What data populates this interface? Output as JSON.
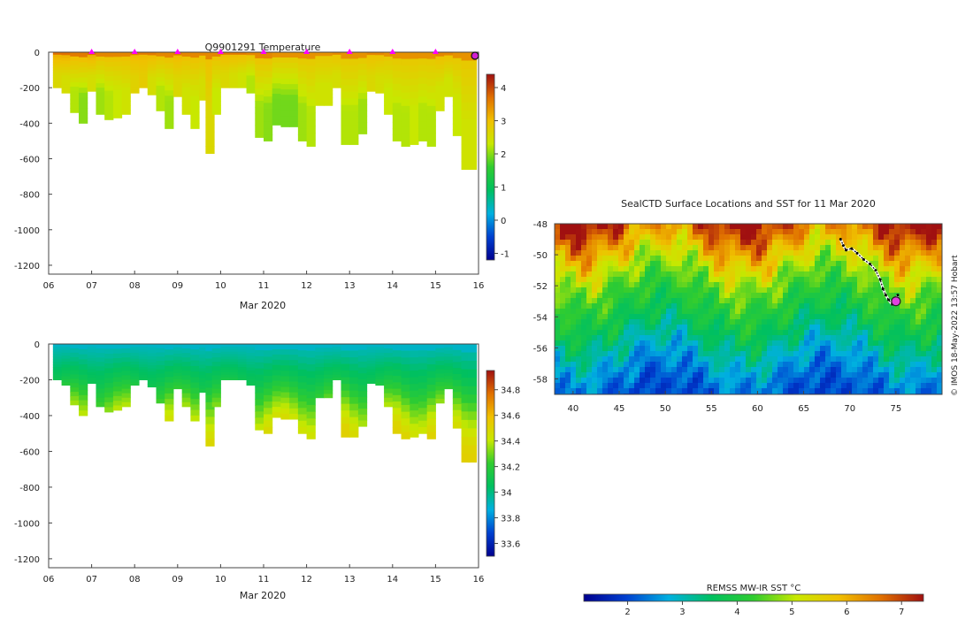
{
  "chart_data": [
    {
      "type": "heatmap",
      "name": "temperature-section",
      "title": "Q9901291  Temperature",
      "xlabel": "Mar 2020",
      "ylabel": "",
      "xlim": [
        6,
        16
      ],
      "ylim": [
        -1250,
        0
      ],
      "xticks": [
        "06",
        "07",
        "08",
        "09",
        "10",
        "11",
        "12",
        "13",
        "14",
        "15",
        "16"
      ],
      "yticks": [
        "0",
        "-200",
        "-400",
        "-600",
        "-800",
        "-1000",
        "-1200"
      ],
      "surface_markers_x": [
        7,
        8,
        9,
        10,
        11,
        12,
        13,
        14,
        15
      ],
      "colorbar": {
        "ticks": [
          "4",
          "3",
          "2",
          "1",
          "0",
          "-1"
        ],
        "range": [
          -1.2,
          4.4
        ]
      },
      "profiles": [
        {
          "x": 6.2,
          "depth": 200,
          "surface_c": 3.2,
          "deep_c": 2.6
        },
        {
          "x": 6.4,
          "depth": 230,
          "surface_c": 3.2,
          "deep_c": 2.5
        },
        {
          "x": 6.6,
          "depth": 340,
          "surface_c": 3.1,
          "deep_c": 2.2
        },
        {
          "x": 6.8,
          "depth": 400,
          "surface_c": 3.1,
          "deep_c": 2.0
        },
        {
          "x": 7.0,
          "depth": 220,
          "surface_c": 3.2,
          "deep_c": 2.5
        },
        {
          "x": 7.2,
          "depth": 350,
          "surface_c": 3.0,
          "deep_c": 2.1
        },
        {
          "x": 7.4,
          "depth": 380,
          "surface_c": 3.0,
          "deep_c": 2.2
        },
        {
          "x": 7.6,
          "depth": 370,
          "surface_c": 3.0,
          "deep_c": 2.3
        },
        {
          "x": 7.8,
          "depth": 350,
          "surface_c": 3.0,
          "deep_c": 2.4
        },
        {
          "x": 8.0,
          "depth": 230,
          "surface_c": 3.1,
          "deep_c": 2.7
        },
        {
          "x": 8.2,
          "depth": 200,
          "surface_c": 3.1,
          "deep_c": 2.8
        },
        {
          "x": 8.4,
          "depth": 240,
          "surface_c": 3.1,
          "deep_c": 2.5
        },
        {
          "x": 8.6,
          "depth": 330,
          "surface_c": 3.0,
          "deep_c": 2.2
        },
        {
          "x": 8.8,
          "depth": 430,
          "surface_c": 3.0,
          "deep_c": 2.1
        },
        {
          "x": 9.0,
          "depth": 250,
          "surface_c": 3.1,
          "deep_c": 2.6
        },
        {
          "x": 9.2,
          "depth": 350,
          "surface_c": 3.0,
          "deep_c": 2.4
        },
        {
          "x": 9.4,
          "depth": 430,
          "surface_c": 3.0,
          "deep_c": 2.3
        },
        {
          "x": 9.6,
          "depth": 270,
          "surface_c": 3.0,
          "deep_c": 2.5
        },
        {
          "x": 9.75,
          "depth": 570,
          "surface_c": 3.0,
          "deep_c": 2.6
        },
        {
          "x": 9.9,
          "depth": 350,
          "surface_c": 3.0,
          "deep_c": 2.3
        },
        {
          "x": 10.1,
          "depth": 200,
          "surface_c": 3.1,
          "deep_c": 2.6
        },
        {
          "x": 10.3,
          "depth": 200,
          "surface_c": 3.1,
          "deep_c": 2.5
        },
        {
          "x": 10.5,
          "depth": 200,
          "surface_c": 3.1,
          "deep_c": 2.4
        },
        {
          "x": 10.7,
          "depth": 230,
          "surface_c": 3.0,
          "deep_c": 2.2
        },
        {
          "x": 10.9,
          "depth": 480,
          "surface_c": 3.0,
          "deep_c": 2.1
        },
        {
          "x": 11.1,
          "depth": 500,
          "surface_c": 3.0,
          "deep_c": 2.0
        },
        {
          "x": 11.3,
          "depth": 410,
          "surface_c": 2.9,
          "deep_c": 1.9
        },
        {
          "x": 11.5,
          "depth": 420,
          "surface_c": 2.9,
          "deep_c": 1.9
        },
        {
          "x": 11.7,
          "depth": 420,
          "surface_c": 2.9,
          "deep_c": 1.9
        },
        {
          "x": 11.9,
          "depth": 500,
          "surface_c": 2.9,
          "deep_c": 2.1
        },
        {
          "x": 12.1,
          "depth": 530,
          "surface_c": 2.9,
          "deep_c": 2.2
        },
        {
          "x": 12.3,
          "depth": 300,
          "surface_c": 2.9,
          "deep_c": 2.4
        },
        {
          "x": 12.5,
          "depth": 300,
          "surface_c": 2.9,
          "deep_c": 2.4
        },
        {
          "x": 12.7,
          "depth": 200,
          "surface_c": 3.0,
          "deep_c": 2.5
        },
        {
          "x": 12.9,
          "depth": 520,
          "surface_c": 2.9,
          "deep_c": 2.2
        },
        {
          "x": 13.1,
          "depth": 520,
          "surface_c": 2.9,
          "deep_c": 2.2
        },
        {
          "x": 13.3,
          "depth": 460,
          "surface_c": 2.9,
          "deep_c": 2.1
        },
        {
          "x": 13.5,
          "depth": 220,
          "surface_c": 3.0,
          "deep_c": 2.6
        },
        {
          "x": 13.7,
          "depth": 230,
          "surface_c": 3.0,
          "deep_c": 2.5
        },
        {
          "x": 13.9,
          "depth": 350,
          "surface_c": 2.9,
          "deep_c": 2.3
        },
        {
          "x": 14.1,
          "depth": 500,
          "surface_c": 2.9,
          "deep_c": 2.2
        },
        {
          "x": 14.3,
          "depth": 530,
          "surface_c": 2.9,
          "deep_c": 2.2
        },
        {
          "x": 14.5,
          "depth": 520,
          "surface_c": 2.9,
          "deep_c": 2.3
        },
        {
          "x": 14.7,
          "depth": 500,
          "surface_c": 2.9,
          "deep_c": 2.2
        },
        {
          "x": 14.9,
          "depth": 530,
          "surface_c": 2.9,
          "deep_c": 2.2
        },
        {
          "x": 15.1,
          "depth": 330,
          "surface_c": 3.0,
          "deep_c": 2.4
        },
        {
          "x": 15.3,
          "depth": 250,
          "surface_c": 3.0,
          "deep_c": 2.4
        },
        {
          "x": 15.5,
          "depth": 470,
          "surface_c": 2.9,
          "deep_c": 2.3
        },
        {
          "x": 15.7,
          "depth": 660,
          "surface_c": 2.9,
          "deep_c": 2.4
        },
        {
          "x": 15.85,
          "depth": 660,
          "surface_c": 2.9,
          "deep_c": 2.4
        }
      ]
    },
    {
      "type": "heatmap",
      "name": "salinity-section",
      "title": "",
      "xlabel": "Mar 2020",
      "ylabel": "",
      "xlim": [
        6,
        16
      ],
      "ylim": [
        -1250,
        0
      ],
      "xticks": [
        "06",
        "07",
        "08",
        "09",
        "10",
        "11",
        "12",
        "13",
        "14",
        "15",
        "16"
      ],
      "yticks": [
        "0",
        "-200",
        "-400",
        "-600",
        "-800",
        "-1000",
        "-1200"
      ],
      "colorbar": {
        "ticks": [
          "34.8",
          "34.6",
          "34.4",
          "34.2",
          "34",
          "33.8",
          "33.6"
        ],
        "range": [
          33.5,
          34.95
        ]
      },
      "surface_value": 33.9,
      "deep_value_by_depth": [
        [
          0,
          33.9
        ],
        [
          100,
          34.0
        ],
        [
          200,
          34.1
        ],
        [
          300,
          34.25
        ],
        [
          400,
          34.4
        ],
        [
          500,
          34.5
        ],
        [
          660,
          34.55
        ]
      ]
    },
    {
      "type": "heatmap",
      "name": "sst-map",
      "title": "SealCTD Surface Locations and SST for 11 Mar 2020",
      "xlabel": "",
      "ylabel": "",
      "xlim": [
        38,
        80
      ],
      "ylim": [
        -59,
        -48
      ],
      "xticks": [
        "40",
        "45",
        "50",
        "55",
        "60",
        "65",
        "70",
        "75"
      ],
      "yticks": [
        "-48",
        "-50",
        "-52",
        "-54",
        "-56",
        "-58"
      ],
      "colorbar": {
        "label": "REMSS MW-IR SST °C",
        "ticks": [
          "2",
          "3",
          "4",
          "5",
          "6",
          "7"
        ],
        "range": [
          1.2,
          7.4
        ]
      },
      "sst_lat_profile": [
        [
          -48,
          6.8
        ],
        [
          -49.5,
          5.8
        ],
        [
          -51,
          4.8
        ],
        [
          -52.5,
          4.2
        ],
        [
          -54,
          3.8
        ],
        [
          -55.5,
          3.2
        ],
        [
          -57,
          2.6
        ],
        [
          -59,
          2.0
        ]
      ],
      "track": [
        [
          69,
          -49
        ],
        [
          69.3,
          -49.4
        ],
        [
          69.6,
          -49.7
        ],
        [
          70.2,
          -49.6
        ],
        [
          70.8,
          -49.9
        ],
        [
          71.5,
          -50.3
        ],
        [
          72.2,
          -50.6
        ],
        [
          72.8,
          -51
        ],
        [
          73.3,
          -51.6
        ],
        [
          73.6,
          -52.2
        ],
        [
          73.9,
          -52.6
        ],
        [
          74.2,
          -52.9
        ],
        [
          74.6,
          -53.2
        ],
        [
          75,
          -53
        ],
        [
          75.2,
          -52.6
        ]
      ],
      "current_position": [
        75,
        -53
      ]
    }
  ],
  "credit": "© IMOS 18-May-2022 13:57 Hobart"
}
